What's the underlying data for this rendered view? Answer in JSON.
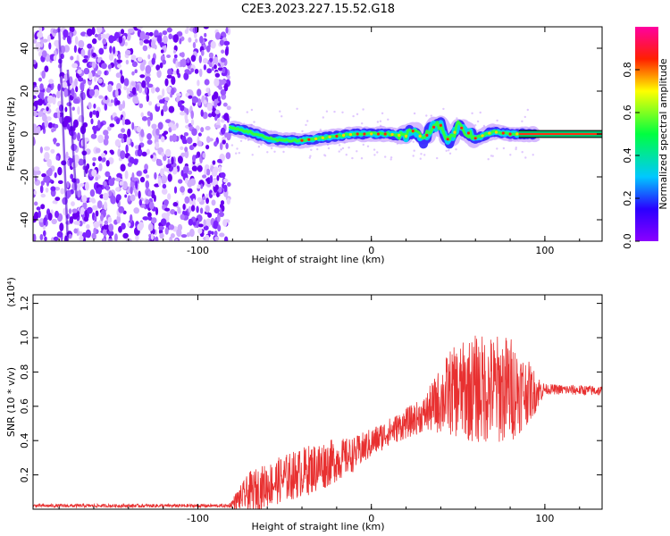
{
  "title": "C2E3.2023.227.15.52.G18",
  "chart_data": [
    {
      "type": "heatmap",
      "xlabel": "Height of straight line (km)",
      "ylabel": "Frequency (Hz)",
      "xlim": [
        -195,
        133
      ],
      "ylim": [
        -50,
        50
      ],
      "xticks": [
        -100,
        0,
        100
      ],
      "yticks": [
        -40,
        -20,
        0,
        20,
        40
      ],
      "colorbar": {
        "label": "Normalized spectral amplitude",
        "range": [
          0.0,
          1.0
        ],
        "ticks": [
          "0.0",
          "0.2",
          "0.4",
          "0.6",
          "0.8"
        ],
        "colormap": "rainbow (violet → blue → cyan → green → yellow → red → magenta)"
      },
      "noise_region_x": [
        -195,
        -82
      ],
      "band_trace": [
        {
          "x": -82,
          "f": 3
        },
        {
          "x": -70,
          "f": 1
        },
        {
          "x": -60,
          "f": -2
        },
        {
          "x": -50,
          "f": -3
        },
        {
          "x": -40,
          "f": -3
        },
        {
          "x": -30,
          "f": -2
        },
        {
          "x": -20,
          "f": -1
        },
        {
          "x": -10,
          "f": 0
        },
        {
          "x": 0,
          "f": 0
        },
        {
          "x": 10,
          "f": 0
        },
        {
          "x": 20,
          "f": -1
        },
        {
          "x": 25,
          "f": 2
        },
        {
          "x": 30,
          "f": -3
        },
        {
          "x": 35,
          "f": 3
        },
        {
          "x": 40,
          "f": 4
        },
        {
          "x": 45,
          "f": -4
        },
        {
          "x": 50,
          "f": 4
        },
        {
          "x": 60,
          "f": -2
        },
        {
          "x": 70,
          "f": 1
        },
        {
          "x": 80,
          "f": 0
        },
        {
          "x": 90,
          "f": 0
        },
        {
          "x": 133,
          "f": 0
        }
      ]
    },
    {
      "type": "line",
      "xlabel": "Height of straight line (km)",
      "ylabel": "SNR (10 * v/v)",
      "y_multiplier": "(x10⁴)",
      "xlim": [
        -195,
        133
      ],
      "ylim": [
        0,
        1.25
      ],
      "xticks": [
        -100,
        0,
        100
      ],
      "yticks": [
        0.2,
        0.4,
        0.6,
        0.8,
        1.0,
        1.2
      ],
      "series": [
        {
          "color": "#e83030",
          "envelope": [
            {
              "x": -195,
              "mean": 0.02,
              "spread": 0.01
            },
            {
              "x": -82,
              "mean": 0.02,
              "spread": 0.01
            },
            {
              "x": -78,
              "mean": 0.05,
              "spread": 0.05
            },
            {
              "x": -70,
              "mean": 0.1,
              "spread": 0.12
            },
            {
              "x": -50,
              "mean": 0.18,
              "spread": 0.14
            },
            {
              "x": -30,
              "mean": 0.25,
              "spread": 0.15
            },
            {
              "x": -10,
              "mean": 0.32,
              "spread": 0.1
            },
            {
              "x": 10,
              "mean": 0.45,
              "spread": 0.08
            },
            {
              "x": 30,
              "mean": 0.55,
              "spread": 0.1
            },
            {
              "x": 45,
              "mean": 0.68,
              "spread": 0.25
            },
            {
              "x": 60,
              "mean": 0.7,
              "spread": 0.32
            },
            {
              "x": 80,
              "mean": 0.7,
              "spread": 0.32
            },
            {
              "x": 93,
              "mean": 0.68,
              "spread": 0.15
            },
            {
              "x": 100,
              "mean": 0.7,
              "spread": 0.03
            },
            {
              "x": 133,
              "mean": 0.69,
              "spread": 0.03
            }
          ]
        }
      ]
    }
  ]
}
